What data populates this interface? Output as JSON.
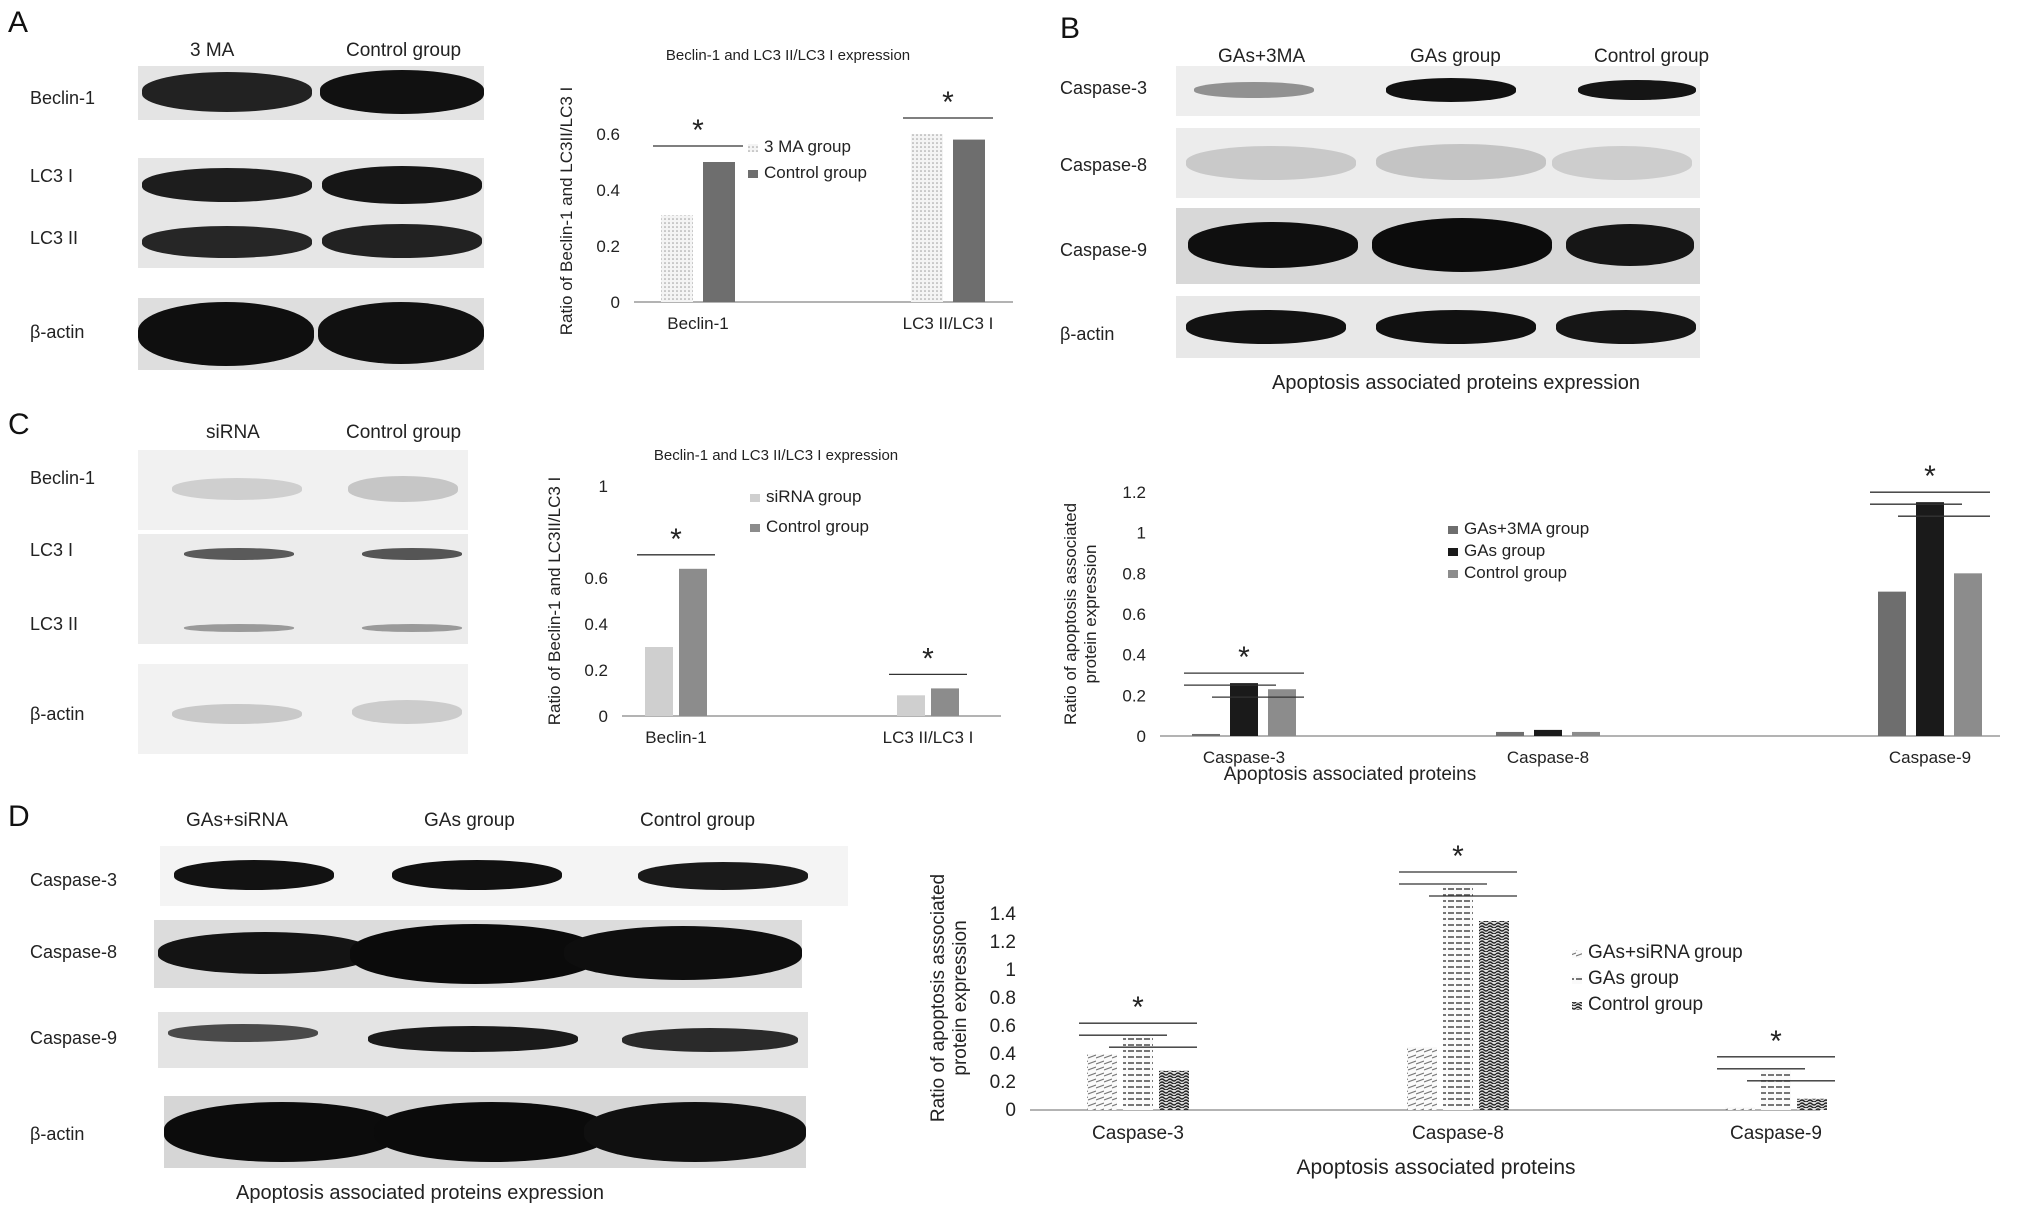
{
  "panels": {
    "A": {
      "label": "A",
      "blot": {
        "lanes": [
          "3 MA",
          "Control group"
        ],
        "rows": [
          "Beclin-1",
          "LC3 I",
          "LC3 II",
          "β-actin"
        ]
      },
      "chart_title": "Beclin-1 and LC3 II/LC3 I expression",
      "ylabel": "Ratio of Beclin-1 and LC3II/LC3 I"
    },
    "B": {
      "label": "B",
      "blot": {
        "lanes": [
          "GAs+3MA",
          "GAs group",
          "Control group"
        ],
        "rows": [
          "Caspase-3",
          "Caspase-8",
          "Caspase-9",
          "β-actin"
        ],
        "caption": "Apoptosis associated proteins expression"
      },
      "ylabel_line1": "Ratio of apoptosis associated",
      "ylabel_line2": "protein expression",
      "xlabel": "Apoptosis associated proteins"
    },
    "C": {
      "label": "C",
      "blot": {
        "lanes": [
          "siRNA",
          "Control group"
        ],
        "rows": [
          "Beclin-1",
          "LC3 I",
          "LC3 II",
          "β-actin"
        ]
      },
      "chart_title": "Beclin-1 and LC3 II/LC3 I expression",
      "ylabel": "Ratio of Beclin-1 and LC3II/LC3 I"
    },
    "D": {
      "label": "D",
      "blot": {
        "lanes": [
          "GAs+siRNA",
          "GAs group",
          "Control group"
        ],
        "rows": [
          "Caspase-3",
          "Caspase-8",
          "Caspase-9",
          "β-actin"
        ],
        "caption": "Apoptosis associated proteins expression"
      },
      "ylabel_line1": "Ratio of apoptosis associated",
      "ylabel_line2": "protein expression",
      "xlabel": "Apoptosis associated proteins"
    }
  },
  "colors": {
    "light": "#cfcfcf",
    "mid": "#8c8c8c",
    "dark": "#6e6e6e",
    "black": "#1a1a1a",
    "axis": "#9a9a9a"
  },
  "significance_marker": "*",
  "chart_data": [
    {
      "id": "A",
      "type": "bar",
      "categories": [
        "Beclin-1",
        "LC3 II/LC3 I"
      ],
      "series": [
        {
          "name": "3 MA group",
          "values": [
            0.31,
            0.6
          ]
        },
        {
          "name": "Control group",
          "values": [
            0.5,
            0.58
          ]
        }
      ],
      "yticks": [
        "0",
        "0.2",
        "0.4",
        "0.6"
      ],
      "ylim": [
        0,
        0.65
      ],
      "legend": "top-right",
      "grid": false,
      "significance": [
        true,
        true
      ]
    },
    {
      "id": "B",
      "type": "bar",
      "categories": [
        "Caspase-3",
        "Caspase-8",
        "Caspase-9"
      ],
      "series": [
        {
          "name": "GAs+3MA group",
          "values": [
            0.01,
            0.02,
            0.71
          ]
        },
        {
          "name": "GAs group",
          "values": [
            0.26,
            0.03,
            1.15
          ]
        },
        {
          "name": "Control group",
          "values": [
            0.23,
            0.02,
            0.8
          ]
        }
      ],
      "yticks": [
        "0",
        "0.2",
        "0.4",
        "0.6",
        "0.8",
        "1",
        "1.2"
      ],
      "ylim": [
        0,
        1.2
      ],
      "legend": "top-center",
      "grid": false,
      "significance": [
        true,
        false,
        true
      ]
    },
    {
      "id": "C",
      "type": "bar",
      "categories": [
        "Beclin-1",
        "LC3 II/LC3 I"
      ],
      "series": [
        {
          "name": "siRNA group",
          "values": [
            0.3,
            0.09
          ]
        },
        {
          "name": "Control group",
          "values": [
            0.64,
            0.12
          ]
        }
      ],
      "yticks": [
        "0",
        "0.2",
        "0.4",
        "0.6",
        "1"
      ],
      "ylim": [
        0,
        1
      ],
      "legend": "top-right",
      "grid": false,
      "significance": [
        true,
        true
      ]
    },
    {
      "id": "D",
      "type": "bar",
      "categories": [
        "Caspase-3",
        "Caspase-8",
        "Caspase-9"
      ],
      "series": [
        {
          "name": "GAs+siRNA group",
          "values": [
            0.4,
            0.45,
            0.02
          ]
        },
        {
          "name": "GAs group",
          "values": [
            0.52,
            1.6,
            0.28
          ]
        },
        {
          "name": "Control group",
          "values": [
            0.28,
            1.35,
            0.08
          ]
        }
      ],
      "yticks": [
        "0",
        "0.2",
        "0.4",
        "0.6",
        "0.8",
        "1",
        "1.2",
        "1.4"
      ],
      "ylim": [
        0,
        1.6
      ],
      "legend": "right",
      "grid": false,
      "significance": [
        true,
        true,
        true
      ]
    }
  ]
}
